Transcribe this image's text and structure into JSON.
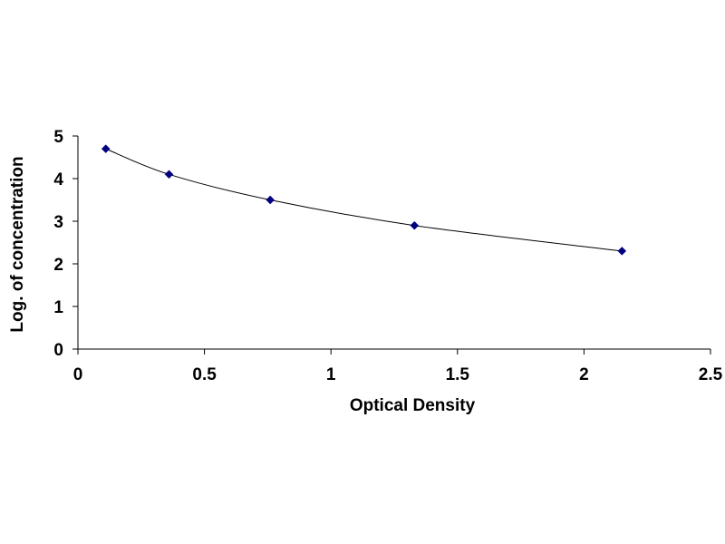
{
  "chart_data": {
    "type": "scatter",
    "title": "",
    "xlabel": "Optical Density",
    "ylabel": "Log. of concentration",
    "xlim": [
      0,
      2.5
    ],
    "ylim": [
      0,
      5
    ],
    "x_ticks": [
      "0",
      "0.5",
      "1",
      "1.5",
      "2",
      "2.5"
    ],
    "y_ticks": [
      "0",
      "1",
      "2",
      "3",
      "4",
      "5"
    ],
    "grid": false,
    "legend": "none",
    "series": [
      {
        "x": [
          0.11,
          0.36,
          0.76,
          1.33,
          2.15
        ],
        "y": [
          4.7,
          4.1,
          3.5,
          2.9,
          2.3
        ],
        "marker": "diamond",
        "color": "#000080",
        "trendline": "smooth"
      }
    ]
  }
}
